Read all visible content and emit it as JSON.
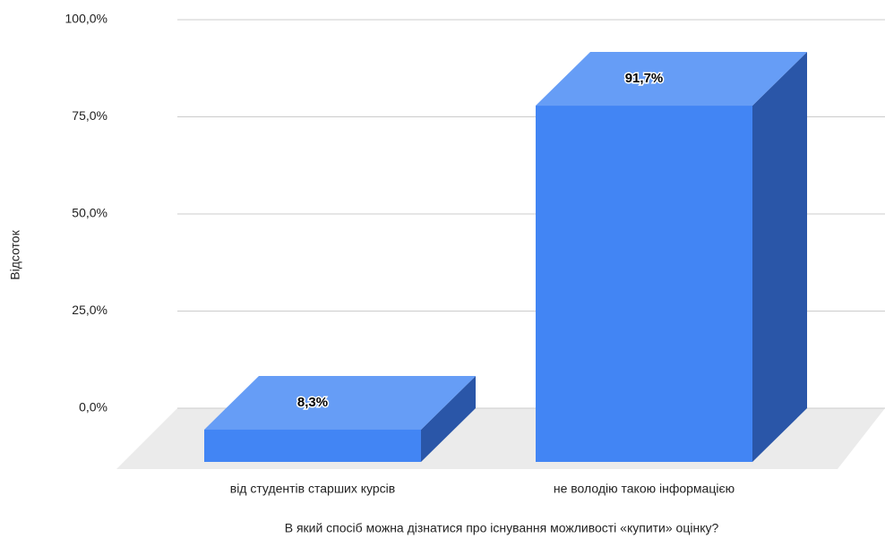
{
  "chart_data": {
    "type": "bar3d",
    "x_label": "В який спосіб можна дізнатися про існування можливості «купити» оцінку?",
    "y_label": "Відсоток",
    "categories": [
      "від студентів старших курсів",
      "не володію такою інформацією"
    ],
    "values": [
      8.3,
      91.7
    ],
    "value_labels": [
      "8,3%",
      "91,7%"
    ],
    "color": "#4285f4",
    "ylim": [
      0,
      100
    ],
    "yticks": [
      {
        "value": 0,
        "label": "0,0%"
      },
      {
        "value": 25,
        "label": "25,0%"
      },
      {
        "value": 50,
        "label": "50,0%"
      },
      {
        "value": 75,
        "label": "75,0%"
      },
      {
        "value": 100,
        "label": "100,0%"
      }
    ],
    "grid": true
  }
}
